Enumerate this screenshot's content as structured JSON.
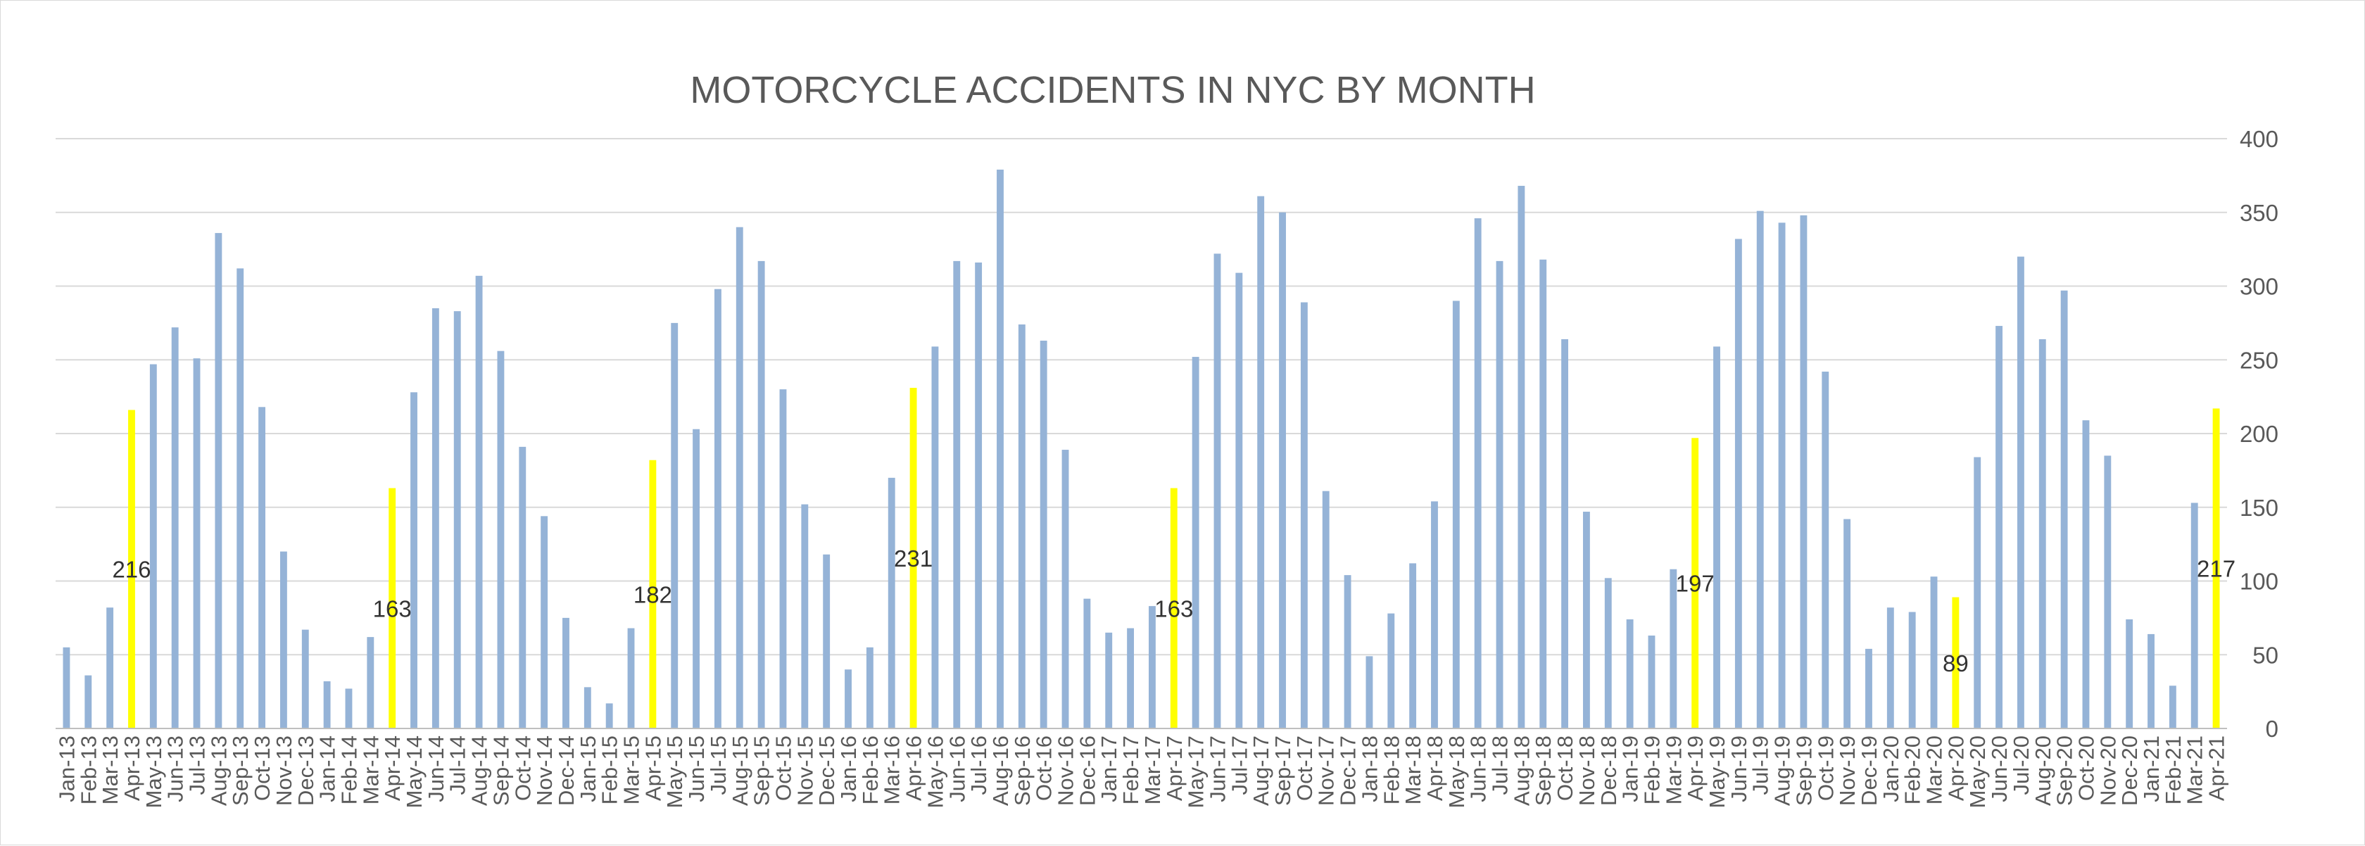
{
  "chart_data": {
    "type": "bar",
    "title": "MOTORCYCLE ACCIDENTS IN NYC BY MONTH",
    "xlabel": "",
    "ylabel": "",
    "ylim": [
      0,
      400
    ],
    "yticks": [
      0,
      50,
      100,
      150,
      200,
      250,
      300,
      350,
      400
    ],
    "y_axis_side": "right",
    "grid": true,
    "legend": "none",
    "colors": {
      "default": "#95b3d7",
      "highlight": "#ffff00"
    },
    "categories": [
      "Jan-13",
      "Feb-13",
      "Mar-13",
      "Apr-13",
      "May-13",
      "Jun-13",
      "Jul-13",
      "Aug-13",
      "Sep-13",
      "Oct-13",
      "Nov-13",
      "Dec-13",
      "Jan-14",
      "Feb-14",
      "Mar-14",
      "Apr-14",
      "May-14",
      "Jun-14",
      "Jul-14",
      "Aug-14",
      "Sep-14",
      "Oct-14",
      "Nov-14",
      "Dec-14",
      "Jan-15",
      "Feb-15",
      "Mar-15",
      "Apr-15",
      "May-15",
      "Jun-15",
      "Jul-15",
      "Aug-15",
      "Sep-15",
      "Oct-15",
      "Nov-15",
      "Dec-15",
      "Jan-16",
      "Feb-16",
      "Mar-16",
      "Apr-16",
      "May-16",
      "Jun-16",
      "Jul-16",
      "Aug-16",
      "Sep-16",
      "Oct-16",
      "Nov-16",
      "Dec-16",
      "Jan-17",
      "Feb-17",
      "Mar-17",
      "Apr-17",
      "May-17",
      "Jun-17",
      "Jul-17",
      "Aug-17",
      "Sep-17",
      "Oct-17",
      "Nov-17",
      "Dec-17",
      "Jan-18",
      "Feb-18",
      "Mar-18",
      "Apr-18",
      "May-18",
      "Jun-18",
      "Jul-18",
      "Aug-18",
      "Sep-18",
      "Oct-18",
      "Nov-18",
      "Dec-18",
      "Jan-19",
      "Feb-19",
      "Mar-19",
      "Apr-19",
      "May-19",
      "Jun-19",
      "Jul-19",
      "Aug-19",
      "Sep-19",
      "Oct-19",
      "Nov-19",
      "Dec-19",
      "Jan-20",
      "Feb-20",
      "Mar-20",
      "Apr-20",
      "May-20",
      "Jun-20",
      "Jul-20",
      "Aug-20",
      "Sep-20",
      "Oct-20",
      "Nov-20",
      "Dec-20",
      "Jan-21",
      "Feb-21",
      "Mar-21",
      "Apr-21"
    ],
    "values": [
      55,
      36,
      82,
      216,
      247,
      272,
      251,
      336,
      312,
      218,
      120,
      67,
      32,
      27,
      62,
      163,
      228,
      285,
      283,
      307,
      256,
      191,
      144,
      75,
      28,
      17,
      68,
      182,
      275,
      203,
      298,
      340,
      317,
      230,
      152,
      118,
      40,
      55,
      170,
      231,
      259,
      317,
      316,
      379,
      274,
      263,
      189,
      88,
      65,
      68,
      83,
      163,
      252,
      322,
      309,
      361,
      350,
      289,
      161,
      104,
      49,
      78,
      112,
      154,
      290,
      346,
      317,
      368,
      318,
      264,
      147,
      102,
      74,
      63,
      108,
      197,
      259,
      332,
      351,
      343,
      348,
      242,
      142,
      54,
      82,
      79,
      103,
      89,
      184,
      273,
      320,
      264,
      297,
      209,
      185,
      74,
      64,
      29,
      153,
      217
    ],
    "highlighted": [
      "Apr-13",
      "Apr-14",
      "Apr-15",
      "Apr-16",
      "Apr-17",
      "Apr-19",
      "Apr-20",
      "Apr-21"
    ],
    "data_labels": [
      {
        "category": "Apr-13",
        "text": "216"
      },
      {
        "category": "Apr-14",
        "text": "163"
      },
      {
        "category": "Apr-15",
        "text": "182"
      },
      {
        "category": "Apr-16",
        "text": "231"
      },
      {
        "category": "Apr-17",
        "text": "163"
      },
      {
        "category": "Apr-19",
        "text": "197"
      },
      {
        "category": "Apr-20",
        "text": "89"
      },
      {
        "category": "Apr-21",
        "text": "217"
      }
    ]
  }
}
